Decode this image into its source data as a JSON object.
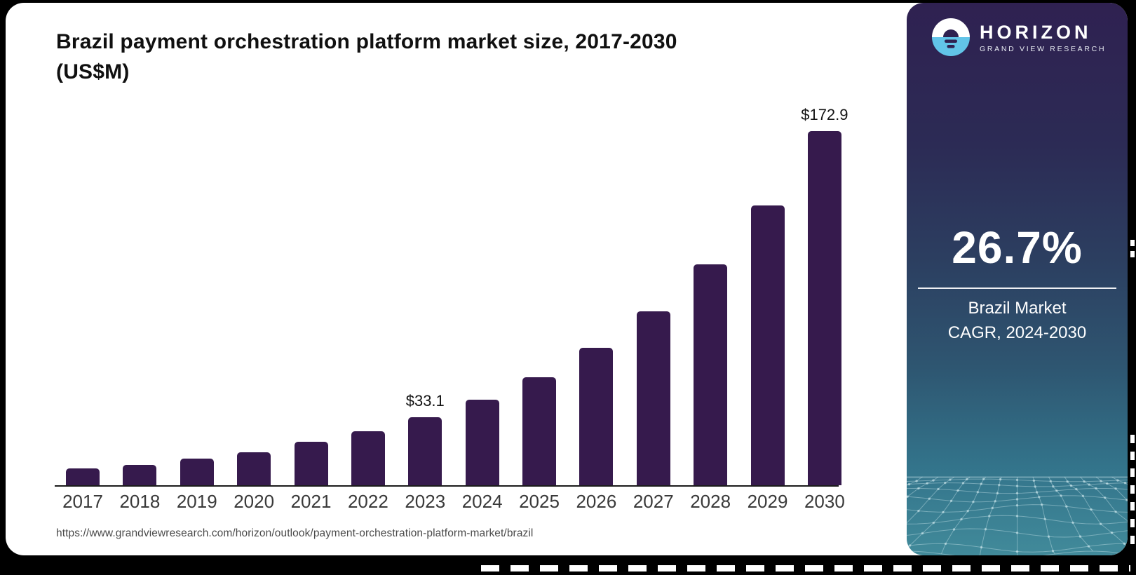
{
  "header": {
    "title_line1": "Brazil payment orchestration platform market size, 2017-2030",
    "title_line2": "(US$M)"
  },
  "chart_data": {
    "type": "bar",
    "title": "Brazil payment orchestration platform market size, 2017-2030 (US$M)",
    "categories": [
      "2017",
      "2018",
      "2019",
      "2020",
      "2021",
      "2022",
      "2023",
      "2024",
      "2025",
      "2026",
      "2027",
      "2028",
      "2029",
      "2030"
    ],
    "values": [
      8.1,
      9.8,
      12.9,
      16.2,
      21.2,
      26.4,
      33.1,
      41.8,
      52.9,
      67.1,
      85.0,
      107.7,
      136.5,
      172.9
    ],
    "data_labels": {
      "2023": "$33.1",
      "2030": "$172.9"
    },
    "xlabel": "",
    "ylabel": "",
    "ylim": [
      0,
      180
    ],
    "grid": false,
    "legend": false,
    "bar_color": "#361A4D"
  },
  "footer": {
    "source_url": "https://www.grandviewresearch.com/horizon/outlook/payment-orchestration-platform-market/brazil"
  },
  "sidebar": {
    "logo": {
      "name": "HORIZON",
      "subtitle": "GRAND VIEW RESEARCH"
    },
    "stat": {
      "value": "26.7%",
      "caption_line1": "Brazil Market",
      "caption_line2": "CAGR, 2024-2030"
    },
    "colors": {
      "gradient_top": "#2F2151",
      "gradient_mid": "#2C3E60",
      "gradient_bottom": "#418A9A",
      "logo_blue": "#62C4E8",
      "bar_purple": "#361A4D"
    }
  }
}
